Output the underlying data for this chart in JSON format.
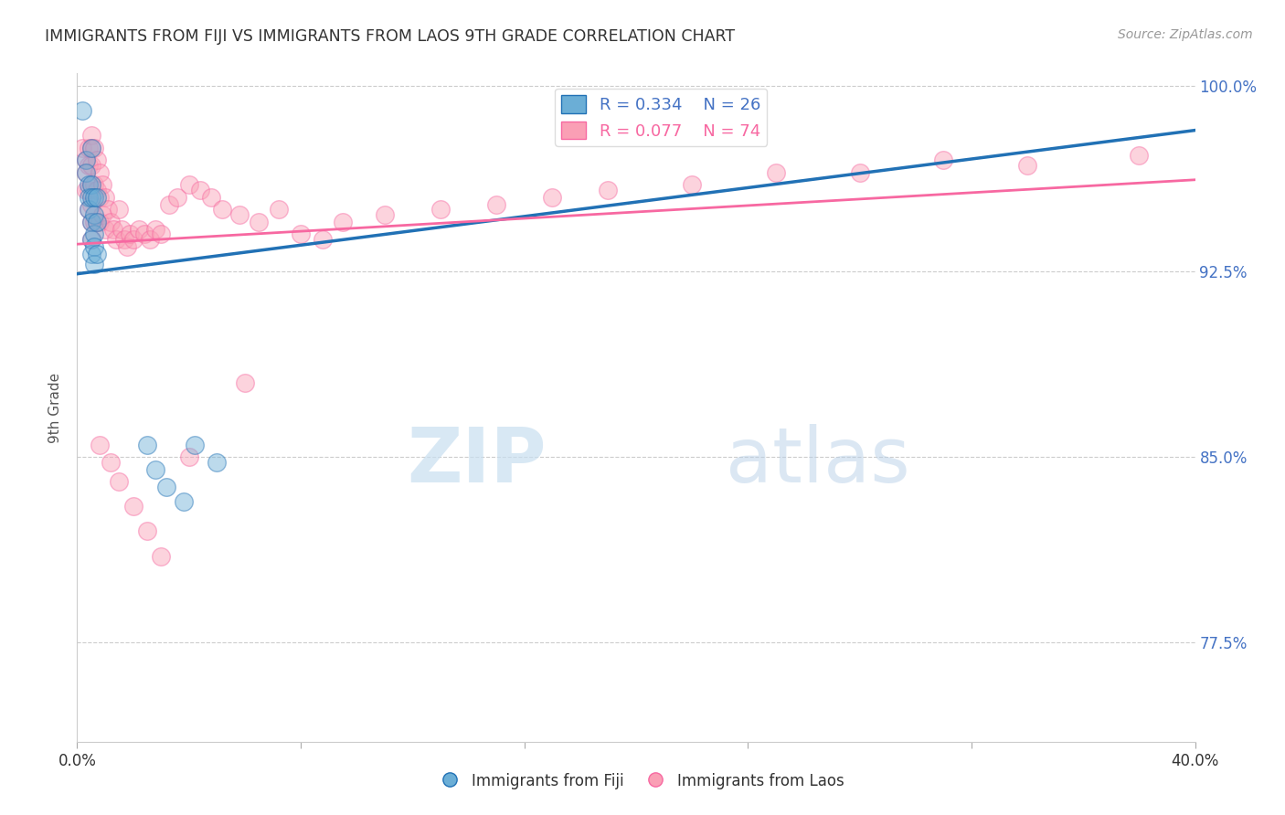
{
  "title": "IMMIGRANTS FROM FIJI VS IMMIGRANTS FROM LAOS 9TH GRADE CORRELATION CHART",
  "source": "Source: ZipAtlas.com",
  "ylabel": "9th Grade",
  "xlabel": "",
  "xlim": [
    0.0,
    0.4
  ],
  "ylim": [
    0.735,
    1.005
  ],
  "yticks": [
    0.775,
    0.85,
    0.925,
    1.0
  ],
  "ytick_labels": [
    "77.5%",
    "85.0%",
    "92.5%",
    "100.0%"
  ],
  "xticks": [
    0.0,
    0.08,
    0.16,
    0.24,
    0.32,
    0.4
  ],
  "xtick_labels": [
    "0.0%",
    "",
    "",
    "",
    "",
    "40.0%"
  ],
  "fiji_color": "#6baed6",
  "laos_color": "#fa9fb5",
  "fiji_line_color": "#2171b5",
  "laos_line_color": "#f768a1",
  "R_fiji": 0.334,
  "N_fiji": 26,
  "R_laos": 0.077,
  "N_laos": 74,
  "fiji_x": [
    0.002,
    0.003,
    0.003,
    0.004,
    0.004,
    0.004,
    0.005,
    0.005,
    0.005,
    0.005,
    0.005,
    0.005,
    0.006,
    0.006,
    0.006,
    0.006,
    0.006,
    0.007,
    0.007,
    0.007,
    0.025,
    0.028,
    0.032,
    0.038,
    0.042,
    0.05
  ],
  "fiji_y": [
    0.99,
    0.97,
    0.965,
    0.96,
    0.955,
    0.95,
    0.975,
    0.96,
    0.955,
    0.945,
    0.938,
    0.932,
    0.955,
    0.948,
    0.94,
    0.935,
    0.928,
    0.955,
    0.945,
    0.932,
    0.855,
    0.845,
    0.838,
    0.832,
    0.855,
    0.848
  ],
  "laos_x": [
    0.002,
    0.003,
    0.003,
    0.003,
    0.004,
    0.004,
    0.004,
    0.004,
    0.005,
    0.005,
    0.005,
    0.005,
    0.005,
    0.005,
    0.005,
    0.006,
    0.006,
    0.006,
    0.007,
    0.007,
    0.007,
    0.008,
    0.008,
    0.008,
    0.009,
    0.009,
    0.01,
    0.01,
    0.011,
    0.012,
    0.013,
    0.014,
    0.015,
    0.016,
    0.017,
    0.018,
    0.019,
    0.02,
    0.022,
    0.024,
    0.026,
    0.028,
    0.03,
    0.033,
    0.036,
    0.04,
    0.044,
    0.048,
    0.052,
    0.058,
    0.065,
    0.072,
    0.08,
    0.088,
    0.095,
    0.11,
    0.13,
    0.15,
    0.17,
    0.19,
    0.22,
    0.25,
    0.28,
    0.31,
    0.34,
    0.38,
    0.008,
    0.012,
    0.015,
    0.02,
    0.025,
    0.03,
    0.04,
    0.06
  ],
  "laos_y": [
    0.975,
    0.97,
    0.965,
    0.958,
    0.975,
    0.968,
    0.958,
    0.95,
    0.98,
    0.975,
    0.968,
    0.96,
    0.952,
    0.945,
    0.938,
    0.975,
    0.96,
    0.945,
    0.97,
    0.958,
    0.945,
    0.965,
    0.955,
    0.945,
    0.96,
    0.948,
    0.955,
    0.942,
    0.95,
    0.945,
    0.942,
    0.938,
    0.95,
    0.942,
    0.938,
    0.935,
    0.94,
    0.938,
    0.942,
    0.94,
    0.938,
    0.942,
    0.94,
    0.952,
    0.955,
    0.96,
    0.958,
    0.955,
    0.95,
    0.948,
    0.945,
    0.95,
    0.94,
    0.938,
    0.945,
    0.948,
    0.95,
    0.952,
    0.955,
    0.958,
    0.96,
    0.965,
    0.965,
    0.97,
    0.968,
    0.972,
    0.855,
    0.848,
    0.84,
    0.83,
    0.82,
    0.81,
    0.85,
    0.88
  ],
  "watermark_zip": "ZIP",
  "watermark_atlas": "atlas",
  "background_color": "#ffffff",
  "grid_color": "#cccccc",
  "title_color": "#333333",
  "axis_label_color": "#555555",
  "tick_color_left": "#333333",
  "tick_color_right": "#4472C4",
  "legend_color_fiji": "#4472C4",
  "legend_color_laos": "#f768a1"
}
